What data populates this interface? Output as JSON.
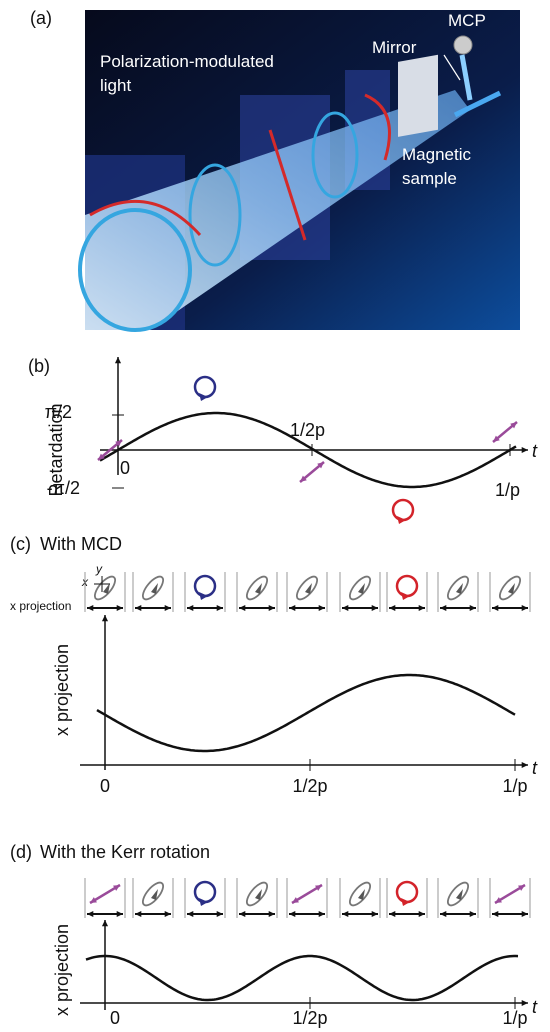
{
  "panel_a": {
    "label": "(a)",
    "light_label": [
      "Polarization-modulated",
      "light"
    ],
    "mcp": "MCP",
    "mirror": "Mirror",
    "sample_label": [
      "Magnetic",
      "sample"
    ]
  },
  "panel_b": {
    "label": "(b)",
    "y_axis_label": "Retardation",
    "y_ticks": [
      "π/2",
      "-π/2"
    ],
    "x_ticks": [
      "0",
      "1/2p",
      "1/p"
    ],
    "x_axis_label": "t"
  },
  "panel_c": {
    "label": "(c)",
    "title": "With MCD",
    "inset_axes": [
      "x",
      "y"
    ],
    "row_label": "x projection",
    "y_axis_label": "x projection",
    "x_ticks": [
      "0",
      "1/2p",
      "1/p"
    ],
    "x_axis_label": "t"
  },
  "panel_d": {
    "label": "(d)",
    "title": "With the Kerr rotation",
    "y_axis_label": "x projection",
    "x_ticks": [
      "0",
      "1/2p",
      "1/p"
    ],
    "x_axis_label": "t"
  }
}
